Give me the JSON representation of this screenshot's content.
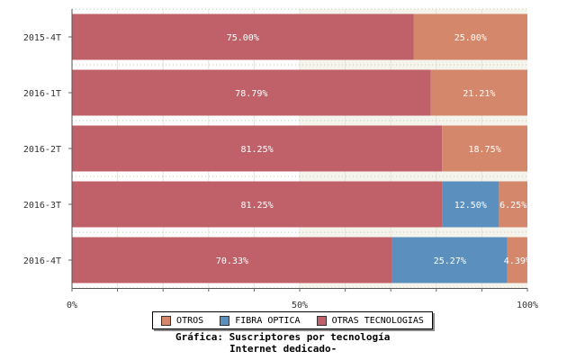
{
  "chart_data": {
    "type": "bar",
    "orientation": "horizontal",
    "stacked": "percent",
    "categories": [
      "2015-4T",
      "2016-1T",
      "2016-2T",
      "2016-3T",
      "2016-4T"
    ],
    "series": [
      {
        "name": "OTRAS TECNOLOGIAS",
        "color": "#c0616a",
        "values": [
          75.0,
          78.79,
          81.25,
          81.25,
          70.33
        ],
        "labels": [
          "75.00%",
          "78.79%",
          "81.25%",
          "81.25%",
          "70.33%"
        ]
      },
      {
        "name": "FIBRA OPTICA",
        "color": "#5b8fbe",
        "values": [
          0,
          0,
          0,
          12.5,
          25.27
        ],
        "labels": [
          "",
          "",
          "",
          "12.50%",
          "25.27%"
        ]
      },
      {
        "name": "OTROS",
        "color": "#d4876a",
        "values": [
          25.0,
          21.21,
          18.75,
          6.25,
          4.39
        ],
        "labels": [
          "25.00%",
          "21.21%",
          "18.75%",
          "6.25%",
          "4.39%"
        ]
      }
    ],
    "xlim": [
      0,
      100
    ],
    "xticks": [
      "0%",
      "50%",
      "100%"
    ],
    "grid": true,
    "legend_position": "bottom"
  },
  "legend": [
    {
      "label": "OTROS",
      "color": "#d4876a"
    },
    {
      "label": "FIBRA OPTICA",
      "color": "#5b8fbe"
    },
    {
      "label": "OTRAS TECNOLOGIAS",
      "color": "#c0616a"
    }
  ],
  "caption": {
    "line1": "Gráfica: Suscriptores por tecnología",
    "line2": "Internet dedicado-"
  }
}
